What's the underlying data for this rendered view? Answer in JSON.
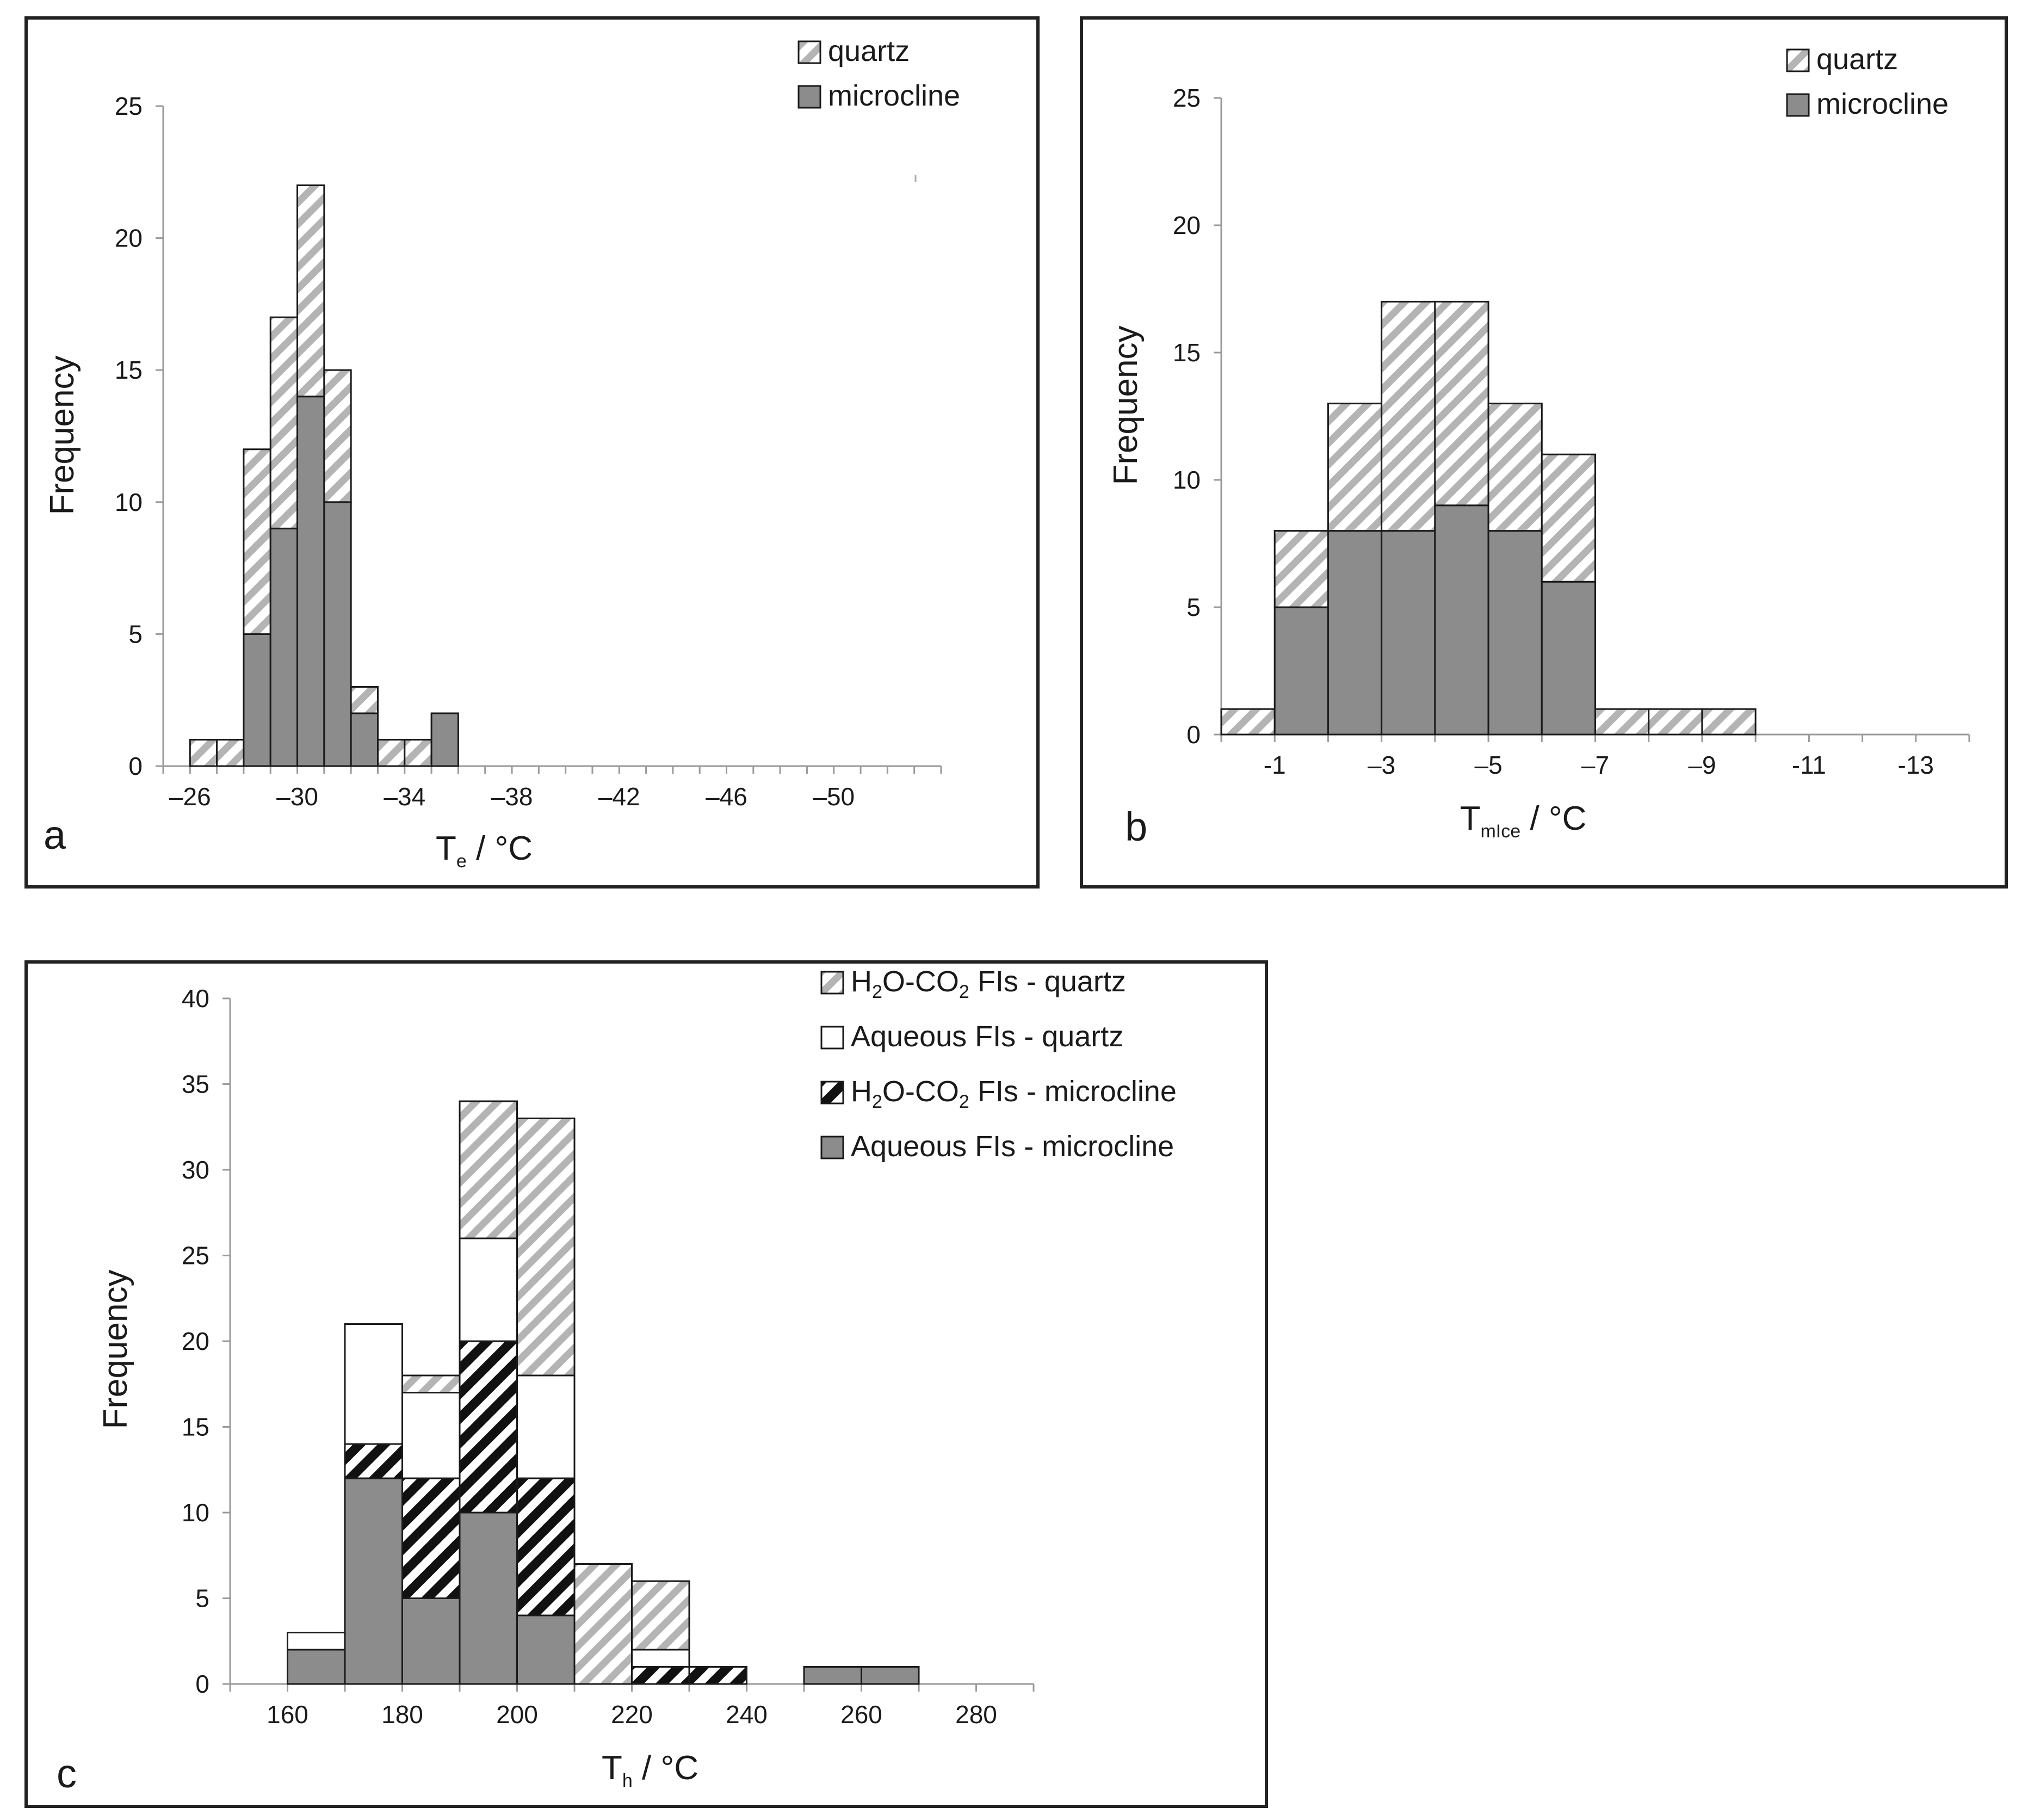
{
  "colors": {
    "microcline": "#8c8c8c",
    "quartz_stripe": "#bdbdbd",
    "aqueous_quartz": "#ffffff",
    "h2o_co2_microcline_stripe": "#111111",
    "outline": "#1a1a1a",
    "axis": "#9a9a9a"
  },
  "chart_data": [
    {
      "id": "a",
      "type": "bar",
      "stacked": true,
      "panel_label": "a",
      "ylabel": "Frequency",
      "xlabel_main": "T",
      "xlabel_sub": "e",
      "xlabel_rest": " / °C",
      "xlim": [
        -25,
        -54
      ],
      "ylim": [
        0,
        25
      ],
      "yticks": [
        0,
        5,
        10,
        15,
        20,
        25
      ],
      "xtick_labels": [
        {
          "value": -26,
          "label": "–26"
        },
        {
          "value": -30,
          "label": "–30"
        },
        {
          "value": -34,
          "label": "–34"
        },
        {
          "value": -38,
          "label": "–38"
        },
        {
          "value": -42,
          "label": "–42"
        },
        {
          "value": -46,
          "label": "–46"
        },
        {
          "value": -50,
          "label": "–50"
        }
      ],
      "bin_edges": [
        -26,
        -27,
        -28,
        -29,
        -30,
        -31,
        -32,
        -33,
        -34,
        -35,
        -36
      ],
      "series": [
        {
          "name": "microcline",
          "style": "solid",
          "values": [
            0,
            0,
            5,
            9,
            14,
            10,
            2,
            0,
            0,
            2
          ]
        },
        {
          "name": "quartz",
          "style": "hatch-grey",
          "values": [
            1,
            1,
            7,
            8,
            8,
            5,
            1,
            1,
            1,
            0
          ]
        }
      ],
      "legend": [
        "quartz",
        "microcline"
      ],
      "legend_position": "top-right"
    },
    {
      "id": "b",
      "type": "bar",
      "stacked": true,
      "panel_label": "b",
      "ylabel": "Frequency",
      "xlabel_main": "T",
      "xlabel_sub": "mIce",
      "xlabel_rest": " / °C",
      "xlim": [
        0,
        -14
      ],
      "ylim": [
        0,
        25
      ],
      "yticks": [
        0,
        5,
        10,
        15,
        20,
        25
      ],
      "xtick_labels": [
        {
          "value": -1,
          "label": "-1"
        },
        {
          "value": -3,
          "label": "–3"
        },
        {
          "value": -5,
          "label": "–5"
        },
        {
          "value": -7,
          "label": "–7"
        },
        {
          "value": -9,
          "label": "–9"
        },
        {
          "value": -11,
          "label": "-11"
        },
        {
          "value": -13,
          "label": "-13"
        }
      ],
      "bin_edges": [
        0,
        -1,
        -2,
        -3,
        -4,
        -5,
        -6,
        -7,
        -8,
        -9,
        -10
      ],
      "series": [
        {
          "name": "microcline",
          "style": "solid",
          "values": [
            0,
            5,
            8,
            8,
            9,
            8,
            6,
            0,
            0,
            0
          ]
        },
        {
          "name": "quartz",
          "style": "hatch-grey",
          "values": [
            1,
            3,
            5,
            9,
            8,
            5,
            5,
            1,
            1,
            1
          ]
        }
      ],
      "legend": [
        "quartz",
        "microcline"
      ],
      "legend_position": "top-right"
    },
    {
      "id": "c",
      "type": "bar",
      "stacked": true,
      "panel_label": "c",
      "ylabel": "Frequency",
      "xlabel_main": "T",
      "xlabel_sub": "h",
      "xlabel_rest": " / °C",
      "xlim": [
        150,
        290
      ],
      "ylim": [
        0,
        40
      ],
      "yticks": [
        0,
        5,
        10,
        15,
        20,
        25,
        30,
        35,
        40
      ],
      "xtick_labels": [
        {
          "value": 160,
          "label": "160"
        },
        {
          "value": 180,
          "label": "180"
        },
        {
          "value": 200,
          "label": "200"
        },
        {
          "value": 220,
          "label": "220"
        },
        {
          "value": 240,
          "label": "240"
        },
        {
          "value": 260,
          "label": "260"
        },
        {
          "value": 280,
          "label": "280"
        }
      ],
      "bin_edges": [
        160,
        170,
        180,
        190,
        200,
        210,
        220,
        230,
        240,
        250,
        260,
        270
      ],
      "series": [
        {
          "name": "Aqueous FIs - microcline",
          "style": "solid",
          "values": [
            2,
            12,
            5,
            10,
            4,
            0,
            0,
            0,
            0,
            1,
            1
          ]
        },
        {
          "name": "H2O-CO2 FIs - microcline",
          "style": "hatch-black",
          "values": [
            0,
            2,
            7,
            10,
            8,
            0,
            1,
            1,
            0,
            0,
            0
          ]
        },
        {
          "name": "Aqueous FIs - quartz",
          "style": "white",
          "values": [
            1,
            7,
            5,
            6,
            6,
            0,
            1,
            0,
            0,
            0,
            0
          ]
        },
        {
          "name": "H2O-CO2 FIs - quartz",
          "style": "hatch-grey",
          "values": [
            0,
            0,
            1,
            8,
            15,
            7,
            4,
            0,
            0,
            0,
            0
          ]
        }
      ],
      "legend": [
        {
          "style": "hatch-grey",
          "parts": [
            "H",
            "2",
            "O-CO",
            "2",
            " FIs - quartz"
          ]
        },
        {
          "style": "white",
          "parts": [
            "Aqueous FIs - quartz"
          ]
        },
        {
          "style": "hatch-black",
          "parts": [
            "H",
            "2",
            "O-CO",
            "2",
            " FIs - microcline"
          ]
        },
        {
          "style": "solid",
          "parts": [
            "Aqueous FIs - microcline"
          ]
        }
      ],
      "legend_position": "top-right"
    }
  ]
}
